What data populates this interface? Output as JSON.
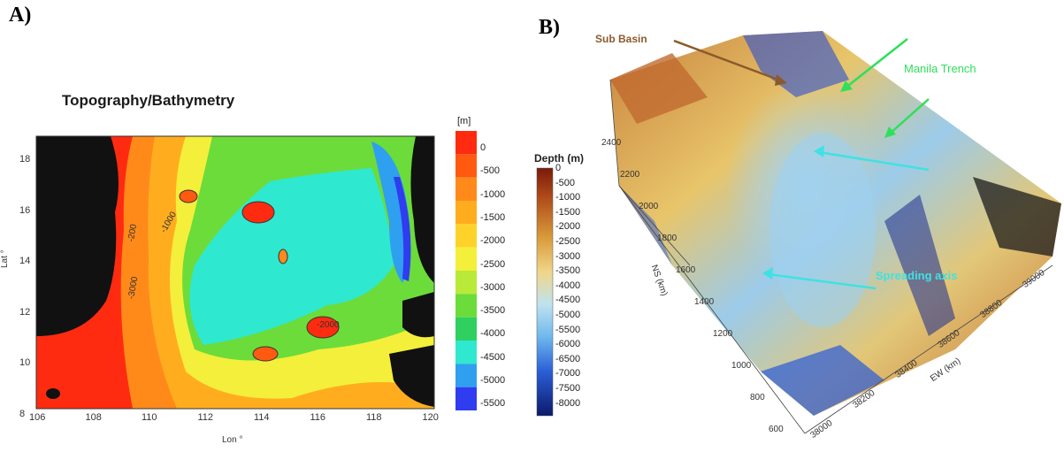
{
  "panel_a": {
    "letter": "A)",
    "title": "Topography/Bathymetry",
    "xlabel": "Lon °",
    "ylabel": "Lat °",
    "x_ticks": [
      "106",
      "108",
      "110",
      "112",
      "114",
      "116",
      "118",
      "120"
    ],
    "y_ticks": [
      "18",
      "16",
      "14",
      "12",
      "10",
      "8"
    ],
    "colorbar_unit": "[m]",
    "colorbar_ticks": [
      "0",
      "-500",
      "-1000",
      "-1500",
      "-2000",
      "-2500",
      "-3000",
      "-3500",
      "-4000",
      "-4500",
      "-5000",
      "-5500"
    ],
    "colorbar_colors": [
      "#ff2b10",
      "#ff5a10",
      "#ff8a1a",
      "#ffad1f",
      "#ffd22a",
      "#f4ef3a",
      "#b9ea3a",
      "#6cdc3a",
      "#2fd060",
      "#2fe8d0",
      "#2f9ff0",
      "#2f3cf0"
    ],
    "contour_labels": [
      "-200",
      "-1000",
      "-2000",
      "-3000"
    ]
  },
  "panel_b": {
    "letter": "B)",
    "colorbar_title": "Depth (m)",
    "colorbar_ticks": [
      "0",
      "-500",
      "-1000",
      "-1500",
      "-2000",
      "-2500",
      "-3000",
      "-3500",
      "-4000",
      "-4500",
      "-5000",
      "-5500",
      "-6000",
      "-6500",
      "-7000",
      "-7500",
      "-8000"
    ],
    "ns_axis_label": "NS (km)",
    "ns_ticks": [
      "2400",
      "2200",
      "2000",
      "1800",
      "1600",
      "1400",
      "1200",
      "1000",
      "800",
      "600"
    ],
    "ew_axis_label": "EW (km)",
    "ew_ticks": [
      "38000",
      "38200",
      "38400",
      "38600",
      "38800",
      "39000"
    ],
    "annotations": {
      "sub_basin": "Sub Basin",
      "manila_trench": "Manila Trench",
      "spreading_axis": "Spreading axis"
    }
  }
}
